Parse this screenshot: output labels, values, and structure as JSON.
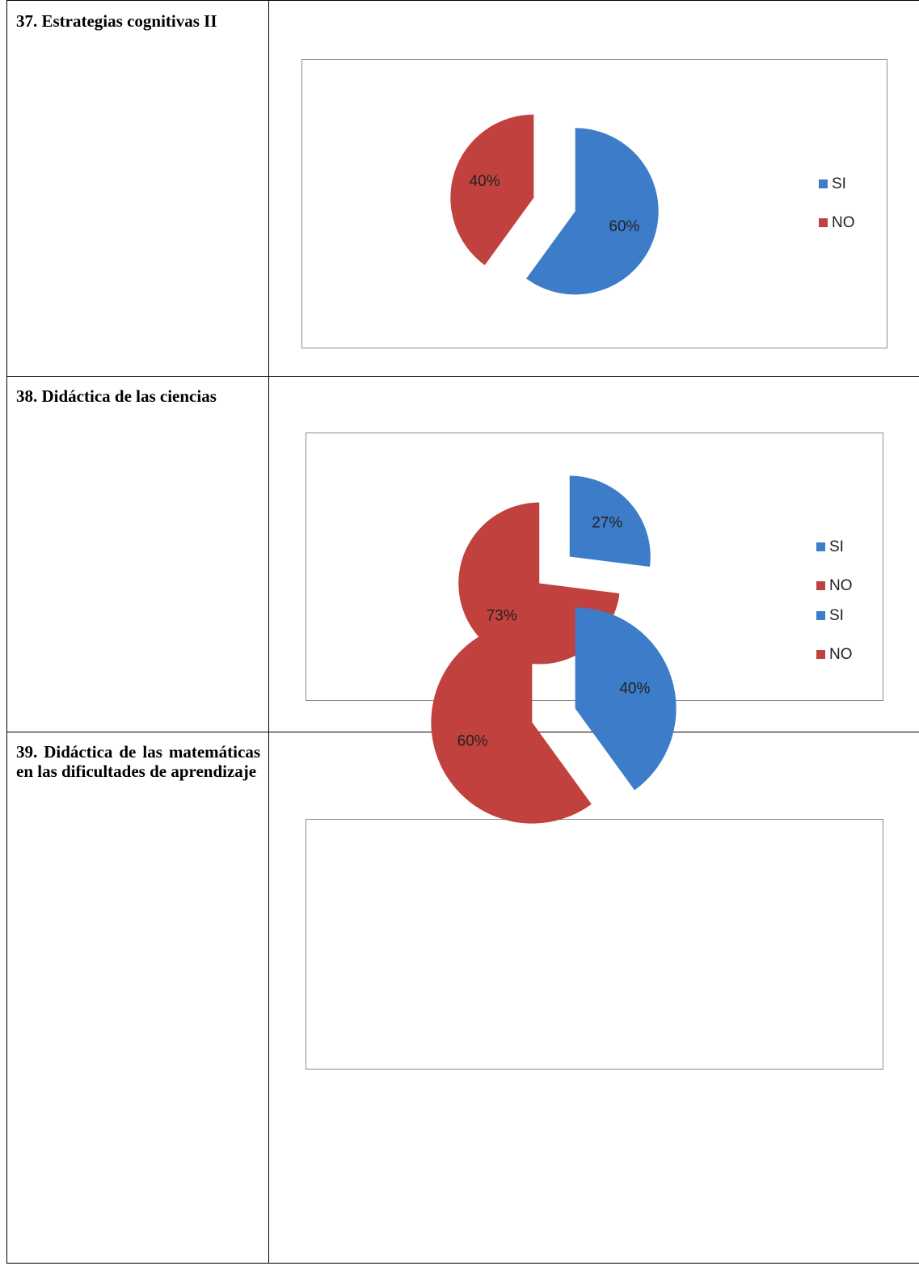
{
  "table": {
    "rows": [
      {
        "label": "37. Estrategias cognitivas II"
      },
      {
        "label": "38. Didáctica de las ciencias"
      },
      {
        "label": "39. Didáctica de las matemáticas en las dificultades de aprendizaje"
      }
    ]
  },
  "chart_data": [
    {
      "type": "pie",
      "categories": [
        "SI",
        "NO"
      ],
      "values": [
        60,
        40
      ],
      "value_labels": [
        "60%",
        "40%"
      ],
      "colors": [
        "#3d7cc9",
        "#c0413d"
      ],
      "legend": "right"
    },
    {
      "type": "pie",
      "categories": [
        "SI",
        "NO"
      ],
      "values": [
        27,
        73
      ],
      "value_labels": [
        "27%",
        "73%"
      ],
      "colors": [
        "#3d7cc9",
        "#c0413d"
      ],
      "legend": "right"
    },
    {
      "type": "pie",
      "categories": [
        "SI",
        "NO"
      ],
      "values": [
        40,
        60
      ],
      "value_labels": [
        "40%",
        "60%"
      ],
      "colors": [
        "#3d7cc9",
        "#c0413d"
      ],
      "legend": "right"
    }
  ]
}
